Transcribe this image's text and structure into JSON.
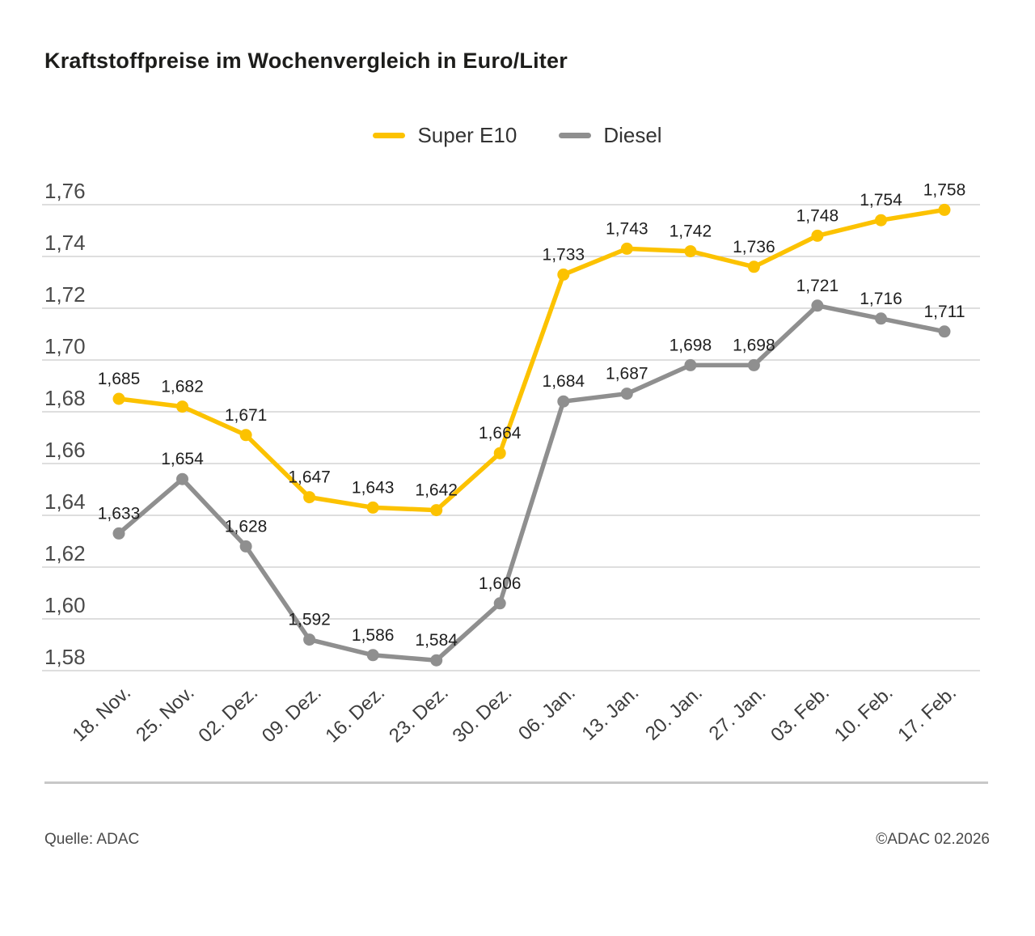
{
  "title": "Kraftstoffpreise im Wochenvergleich in Euro/Liter",
  "legend": [
    {
      "label": "Super E10",
      "color": "#FCC200"
    },
    {
      "label": "Diesel",
      "color": "#8F8F8F"
    }
  ],
  "footer": {
    "source": "Quelle: ADAC",
    "copyright": "©ADAC 02.2026"
  },
  "chart_data": {
    "type": "line",
    "title": "Kraftstoffpreise im Wochenvergleich in Euro/Liter",
    "categories": [
      "18. Nov.",
      "25. Nov.",
      "02. Dez.",
      "09. Dez.",
      "16. Dez.",
      "23. Dez.",
      "30. Dez.",
      "06. Jan.",
      "13. Jan.",
      "20. Jan.",
      "27. Jan.",
      "03. Feb.",
      "10. Feb.",
      "17. Feb."
    ],
    "series": [
      {
        "name": "Super E10",
        "color": "#FCC200",
        "values": [
          1.685,
          1.682,
          1.671,
          1.647,
          1.643,
          1.642,
          1.664,
          1.733,
          1.743,
          1.742,
          1.736,
          1.748,
          1.754,
          1.758
        ],
        "labels": [
          "1,685",
          "1,682",
          "1,671",
          "1,647",
          "1,643",
          "1,642",
          "1,664",
          "1,733",
          "1,743",
          "1,742",
          "1,736",
          "1,748",
          "1,754",
          "1,758"
        ]
      },
      {
        "name": "Diesel",
        "color": "#8F8F8F",
        "values": [
          1.633,
          1.654,
          1.628,
          1.592,
          1.586,
          1.584,
          1.606,
          1.684,
          1.687,
          1.698,
          1.698,
          1.721,
          1.716,
          1.711
        ],
        "labels": [
          "1,633",
          "1,654",
          "1,628",
          "1,592",
          "1,586",
          "1,584",
          "1,606",
          "1,684",
          "1,687",
          "1,698",
          "1,698",
          "1,721",
          "1,716",
          "1,711"
        ]
      }
    ],
    "yticks": {
      "values": [
        1.58,
        1.6,
        1.62,
        1.64,
        1.66,
        1.68,
        1.7,
        1.72,
        1.74,
        1.76
      ],
      "labels": [
        "1,58",
        "1,60",
        "1,62",
        "1,64",
        "1,66",
        "1,68",
        "1,70",
        "1,72",
        "1,74",
        "1,76"
      ]
    },
    "ylim": [
      1.58,
      1.76
    ],
    "xlabel": "",
    "ylabel": "Euro/Liter",
    "grid": true,
    "legend_position": "top-center"
  }
}
